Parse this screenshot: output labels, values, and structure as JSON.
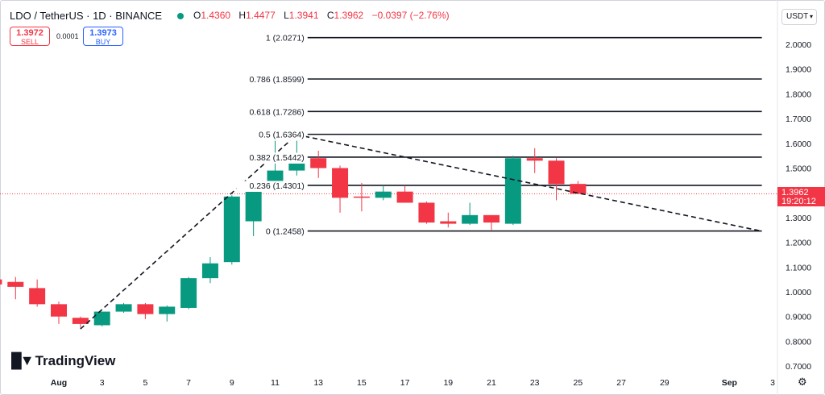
{
  "header": {
    "symbol": "LDO / TetherUS · 1D · BINANCE",
    "ohlc": {
      "o_label": "O",
      "o": "1.4360",
      "h_label": "H",
      "h": "1.4477",
      "l_label": "L",
      "l": "1.3941",
      "c_label": "C",
      "c": "1.3962",
      "change": "−0.0397 (−2.76%)"
    }
  },
  "trade": {
    "sell_price": "1.3972",
    "sell_label": "SELL",
    "spread": "0.0001",
    "buy_price": "1.3973",
    "buy_label": "BUY"
  },
  "currency": "USDT",
  "brand": "TradingView",
  "last_price": {
    "value": "1.3962",
    "countdown": "19:20:12"
  },
  "colors": {
    "up": "#089981",
    "down": "#f23645",
    "text": "#131722"
  },
  "icons": {
    "settings": "gear-icon",
    "currency_menu": "chevron-down-icon"
  },
  "chart_data": {
    "type": "candlestick",
    "x_tick_labels": [
      "Aug",
      "3",
      "5",
      "7",
      "9",
      "11",
      "13",
      "15",
      "17",
      "19",
      "21",
      "23",
      "25",
      "27",
      "29",
      "Sep",
      "3"
    ],
    "x_tick_days": [
      1,
      3,
      5,
      7,
      9,
      11,
      13,
      15,
      17,
      19,
      21,
      23,
      25,
      27,
      29,
      32,
      34
    ],
    "y_ticks": [
      "2.0000",
      "1.9000",
      "1.8000",
      "1.7000",
      "1.6000",
      "1.5000",
      "1.4000",
      "1.3000",
      "1.2000",
      "1.1000",
      "1.0000",
      "0.9000",
      "0.8000",
      "0.7000"
    ],
    "ylim": [
      0.67,
      2.1
    ],
    "candles": [
      {
        "day": -2,
        "o": 1.05,
        "h": 1.06,
        "l": 1.03,
        "c": 1.03
      },
      {
        "day": -1,
        "o": 1.04,
        "h": 1.06,
        "l": 0.97,
        "c": 1.02
      },
      {
        "day": 0,
        "o": 1.015,
        "h": 1.05,
        "l": 0.94,
        "c": 0.95
      },
      {
        "day": 1,
        "o": 0.95,
        "h": 0.96,
        "l": 0.87,
        "c": 0.9
      },
      {
        "day": 2,
        "o": 0.895,
        "h": 0.9,
        "l": 0.855,
        "c": 0.87
      },
      {
        "day": 3,
        "o": 0.865,
        "h": 0.92,
        "l": 0.86,
        "c": 0.92
      },
      {
        "day": 4,
        "o": 0.92,
        "h": 0.955,
        "l": 0.915,
        "c": 0.95
      },
      {
        "day": 5,
        "o": 0.95,
        "h": 0.955,
        "l": 0.89,
        "c": 0.91
      },
      {
        "day": 6,
        "o": 0.91,
        "h": 0.945,
        "l": 0.88,
        "c": 0.94
      },
      {
        "day": 7,
        "o": 0.935,
        "h": 1.06,
        "l": 0.93,
        "c": 1.055
      },
      {
        "day": 8,
        "o": 1.055,
        "h": 1.14,
        "l": 1.035,
        "c": 1.115
      },
      {
        "day": 9,
        "o": 1.12,
        "h": 1.39,
        "l": 1.11,
        "c": 1.385
      },
      {
        "day": 10,
        "o": 1.285,
        "h": 1.445,
        "l": 1.225,
        "c": 1.44
      },
      {
        "day": 11,
        "o": 1.44,
        "h": 1.63,
        "l": 1.43,
        "c": 1.49
      },
      {
        "day": 12,
        "o": 1.49,
        "h": 1.6364,
        "l": 1.47,
        "c": 1.54
      },
      {
        "day": 13,
        "o": 1.54,
        "h": 1.57,
        "l": 1.46,
        "c": 1.5
      },
      {
        "day": 14,
        "o": 1.5,
        "h": 1.51,
        "l": 1.32,
        "c": 1.38
      },
      {
        "day": 15,
        "o": 1.385,
        "h": 1.44,
        "l": 1.325,
        "c": 1.38
      },
      {
        "day": 16,
        "o": 1.38,
        "h": 1.43,
        "l": 1.37,
        "c": 1.405
      },
      {
        "day": 17,
        "o": 1.405,
        "h": 1.43,
        "l": 1.36,
        "c": 1.36
      },
      {
        "day": 18,
        "o": 1.36,
        "h": 1.365,
        "l": 1.275,
        "c": 1.28
      },
      {
        "day": 19,
        "o": 1.285,
        "h": 1.32,
        "l": 1.26,
        "c": 1.275
      },
      {
        "day": 20,
        "o": 1.275,
        "h": 1.36,
        "l": 1.27,
        "c": 1.31
      },
      {
        "day": 21,
        "o": 1.31,
        "h": 1.31,
        "l": 1.25,
        "c": 1.28
      },
      {
        "day": 22,
        "o": 1.275,
        "h": 1.55,
        "l": 1.27,
        "c": 1.54
      },
      {
        "day": 23,
        "o": 1.54,
        "h": 1.58,
        "l": 1.48,
        "c": 1.53
      },
      {
        "day": 24,
        "o": 1.53,
        "h": 1.54,
        "l": 1.37,
        "c": 1.435
      },
      {
        "day": 25,
        "o": 1.436,
        "h": 1.4477,
        "l": 1.3941,
        "c": 1.3962
      }
    ],
    "fib_levels": [
      {
        "label": "1 (2.0271)",
        "value": 2.0271
      },
      {
        "label": "0.786 (1.8599)",
        "value": 1.8599
      },
      {
        "label": "0.618 (1.7286)",
        "value": 1.7286
      },
      {
        "label": "0.5 (1.6364)",
        "value": 1.6364
      },
      {
        "label": "0.382 (1.5442)",
        "value": 1.5442
      },
      {
        "label": "0.236 (1.4301)",
        "value": 1.4301
      },
      {
        "label": "0 (1.2458)",
        "value": 1.2458
      }
    ],
    "fib_x_range_days": [
      12.5,
      33.5
    ],
    "trendlines": [
      {
        "from": {
          "day": 2,
          "value": 0.85
        },
        "to": {
          "day": 12,
          "value": 1.635
        }
      },
      {
        "from": {
          "day": 12,
          "value": 1.635
        },
        "to": {
          "day": 33.5,
          "value": 1.245
        }
      }
    ],
    "last_price_line": 1.3962,
    "grid": false
  }
}
